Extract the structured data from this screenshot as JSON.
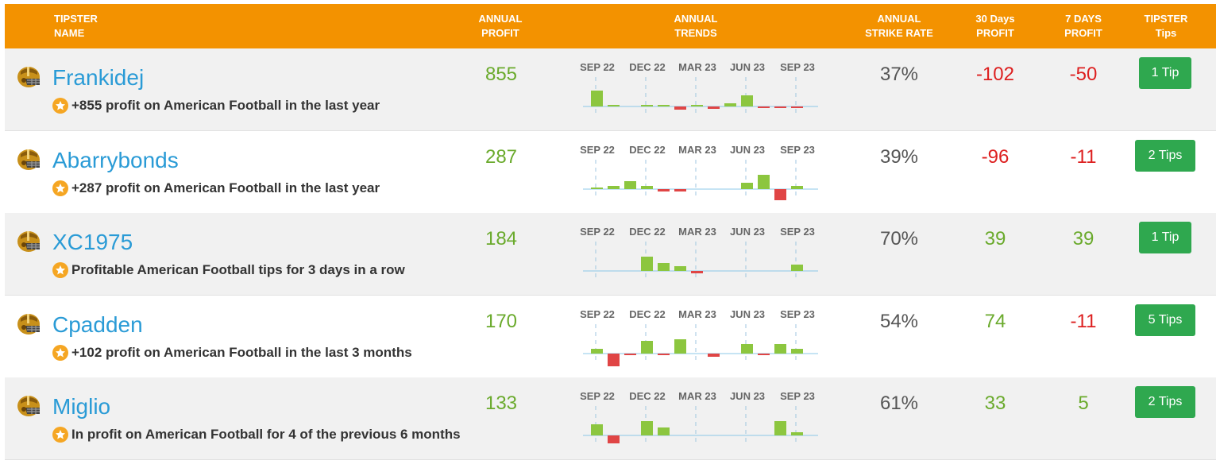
{
  "header": {
    "tipster_name": [
      "TIPSTER",
      "NAME"
    ],
    "annual_profit": [
      "ANNUAL",
      "PROFIT"
    ],
    "annual_trends": [
      "ANNUAL",
      "TRENDS"
    ],
    "annual_strike_rate": [
      "ANNUAL",
      "STRIKE RATE"
    ],
    "days30_profit": [
      "30 Days",
      "PROFIT"
    ],
    "days7_profit": [
      "7 DAYS",
      "PROFIT"
    ],
    "tipster_tips": [
      "TIPSTER",
      "Tips"
    ]
  },
  "trend_labels": [
    "SEP 22",
    "DEC 22",
    "MAR 23",
    "JUN 23",
    "SEP 23"
  ],
  "colors": {
    "header": "#f39200",
    "positive": "#6aaa2c",
    "negative": "#dd1f1f",
    "link": "#2a9bd6",
    "button": "#2fa84f",
    "bar_pos": "#8cc63f",
    "bar_neg": "#e04545"
  },
  "rows": [
    {
      "name": "Frankidej",
      "achievement": "+855 profit on American Football in the last year",
      "annual_profit": "855",
      "annual_profit_sign": "pos",
      "strike_rate": "37%",
      "profit_30": "-102",
      "profit_30_sign": "neg",
      "profit_7": "-50",
      "profit_7_sign": "neg",
      "tips_label": "1 Tip",
      "trend": [
        20,
        2,
        0,
        2,
        2,
        -4,
        2,
        -3,
        4,
        14,
        -2,
        -2,
        -2
      ]
    },
    {
      "name": "Abarrybonds",
      "achievement": "+287 profit on American Football in the last year",
      "annual_profit": "287",
      "annual_profit_sign": "pos",
      "strike_rate": "39%",
      "profit_30": "-96",
      "profit_30_sign": "neg",
      "profit_7": "-11",
      "profit_7_sign": "neg",
      "tips_label": "2 Tips",
      "trend": [
        2,
        4,
        10,
        4,
        -3,
        -3,
        0,
        0,
        0,
        8,
        18,
        -14,
        4
      ]
    },
    {
      "name": "XC1975",
      "achievement": "Profitable American Football tips for 3 days in a row",
      "annual_profit": "184",
      "annual_profit_sign": "pos",
      "strike_rate": "70%",
      "profit_30": "39",
      "profit_30_sign": "pos",
      "profit_7": "39",
      "profit_7_sign": "pos",
      "tips_label": "1 Tip",
      "trend": [
        0,
        0,
        0,
        18,
        10,
        6,
        -3,
        0,
        0,
        0,
        0,
        0,
        8
      ]
    },
    {
      "name": "Cpadden",
      "achievement": "+102 profit on American Football in the last 3 months",
      "annual_profit": "170",
      "annual_profit_sign": "pos",
      "strike_rate": "54%",
      "profit_30": "74",
      "profit_30_sign": "pos",
      "profit_7": "-11",
      "profit_7_sign": "neg",
      "tips_label": "5 Tips",
      "trend": [
        6,
        -16,
        -2,
        16,
        -2,
        18,
        0,
        -4,
        0,
        12,
        -2,
        12,
        6
      ]
    },
    {
      "name": "Miglio",
      "achievement": "In profit on American Football for 4 of the previous 6 months",
      "annual_profit": "133",
      "annual_profit_sign": "pos",
      "strike_rate": "61%",
      "profit_30": "33",
      "profit_30_sign": "pos",
      "profit_7": "5",
      "profit_7_sign": "pos",
      "tips_label": "2 Tips",
      "trend": [
        14,
        -10,
        0,
        18,
        10,
        0,
        0,
        0,
        0,
        0,
        0,
        18,
        4
      ]
    }
  ]
}
